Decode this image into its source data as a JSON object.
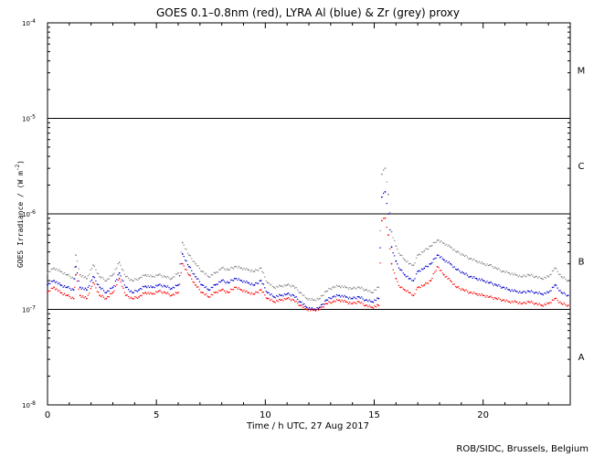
{
  "chart_data": {
    "type": "scatter",
    "title": "GOES 0.1–0.8nm (red), LYRA Al (blue) & Zr (grey) proxy",
    "xlabel": "Time / h UTC, 27 Aug 2017",
    "ylabel": "GOES Irradiance / (W m",
    "ylabel_exp": "-2",
    "ylabel_close": ")",
    "credit": "ROB/SIDC, Brussels, Belgium",
    "x_range": [
      0,
      24
    ],
    "x_ticks": [
      {
        "value": 0,
        "label": "0"
      },
      {
        "value": 5,
        "label": "5"
      },
      {
        "value": 10,
        "label": "10"
      },
      {
        "value": 15,
        "label": "15"
      },
      {
        "value": 20,
        "label": "20"
      }
    ],
    "y_scale": "log",
    "y_range": [
      1e-08,
      0.0001
    ],
    "y_ticks": [
      {
        "value": 0.0001,
        "base": "10",
        "exp": "-4"
      },
      {
        "value": 1e-05,
        "base": "10",
        "exp": "-5"
      },
      {
        "value": 1e-06,
        "base": "10",
        "exp": "-6"
      },
      {
        "value": 1e-07,
        "base": "10",
        "exp": "-7"
      },
      {
        "value": 1e-08,
        "base": "10",
        "exp": "-8"
      }
    ],
    "class_thresholds": [
      1e-05,
      1e-06,
      1e-07
    ],
    "class_labels": [
      {
        "label": "M",
        "value": 3.2e-05
      },
      {
        "label": "C",
        "value": 3.2e-06
      },
      {
        "label": "B",
        "value": 3.2e-07
      },
      {
        "label": "A",
        "value": 3.2e-08
      }
    ],
    "grid": false,
    "legend": "none",
    "series": [
      {
        "name": "GOES 0.1–0.8nm",
        "color": "#ff0000",
        "points": [
          [
            0.0,
            1.5e-07
          ],
          [
            0.3,
            1.7e-07
          ],
          [
            0.6,
            1.5e-07
          ],
          [
            0.9,
            1.4e-07
          ],
          [
            1.2,
            1.3e-07
          ],
          [
            1.3,
            2.3e-07
          ],
          [
            1.5,
            1.4e-07
          ],
          [
            1.8,
            1.3e-07
          ],
          [
            2.1,
            1.9e-07
          ],
          [
            2.4,
            1.4e-07
          ],
          [
            2.7,
            1.3e-07
          ],
          [
            3.0,
            1.5e-07
          ],
          [
            3.3,
            2.1e-07
          ],
          [
            3.6,
            1.4e-07
          ],
          [
            3.9,
            1.3e-07
          ],
          [
            4.2,
            1.35e-07
          ],
          [
            4.5,
            1.5e-07
          ],
          [
            4.8,
            1.45e-07
          ],
          [
            5.1,
            1.55e-07
          ],
          [
            5.4,
            1.5e-07
          ],
          [
            5.7,
            1.4e-07
          ],
          [
            6.0,
            1.5e-07
          ],
          [
            6.2,
            3e-07
          ],
          [
            6.5,
            2.3e-07
          ],
          [
            6.8,
            1.8e-07
          ],
          [
            7.1,
            1.5e-07
          ],
          [
            7.4,
            1.35e-07
          ],
          [
            7.7,
            1.5e-07
          ],
          [
            8.0,
            1.6e-07
          ],
          [
            8.3,
            1.5e-07
          ],
          [
            8.6,
            1.7e-07
          ],
          [
            8.9,
            1.6e-07
          ],
          [
            9.2,
            1.5e-07
          ],
          [
            9.5,
            1.45e-07
          ],
          [
            9.8,
            1.6e-07
          ],
          [
            10.1,
            1.3e-07
          ],
          [
            10.4,
            1.2e-07
          ],
          [
            10.7,
            1.25e-07
          ],
          [
            11.0,
            1.3e-07
          ],
          [
            11.3,
            1.25e-07
          ],
          [
            11.6,
            1.1e-07
          ],
          [
            11.9,
            1e-07
          ],
          [
            12.2,
            9.8e-08
          ],
          [
            12.5,
            1e-07
          ],
          [
            12.8,
            1.15e-07
          ],
          [
            13.1,
            1.2e-07
          ],
          [
            13.4,
            1.25e-07
          ],
          [
            13.7,
            1.2e-07
          ],
          [
            14.0,
            1.15e-07
          ],
          [
            14.3,
            1.2e-07
          ],
          [
            14.6,
            1.1e-07
          ],
          [
            14.9,
            1.05e-07
          ],
          [
            15.2,
            1.1e-07
          ],
          [
            15.35,
            8.5e-07
          ],
          [
            15.5,
            9e-07
          ],
          [
            15.65,
            6e-07
          ],
          [
            15.8,
            3e-07
          ],
          [
            16.0,
            2.1e-07
          ],
          [
            16.2,
            1.7e-07
          ],
          [
            16.4,
            1.6e-07
          ],
          [
            16.6,
            1.5e-07
          ],
          [
            16.8,
            1.4e-07
          ],
          [
            17.0,
            1.7e-07
          ],
          [
            17.3,
            1.8e-07
          ],
          [
            17.6,
            2e-07
          ],
          [
            17.9,
            2.8e-07
          ],
          [
            18.2,
            2.3e-07
          ],
          [
            18.5,
            2e-07
          ],
          [
            18.8,
            1.7e-07
          ],
          [
            19.1,
            1.6e-07
          ],
          [
            19.4,
            1.5e-07
          ],
          [
            19.7,
            1.45e-07
          ],
          [
            20.0,
            1.4e-07
          ],
          [
            20.3,
            1.35e-07
          ],
          [
            20.6,
            1.3e-07
          ],
          [
            20.9,
            1.25e-07
          ],
          [
            21.2,
            1.2e-07
          ],
          [
            21.5,
            1.2e-07
          ],
          [
            21.8,
            1.15e-07
          ],
          [
            22.1,
            1.2e-07
          ],
          [
            22.4,
            1.15e-07
          ],
          [
            22.7,
            1.1e-07
          ],
          [
            23.0,
            1.15e-07
          ],
          [
            23.3,
            1.3e-07
          ],
          [
            23.6,
            1.15e-07
          ],
          [
            23.9,
            1.1e-07
          ]
        ]
      },
      {
        "name": "LYRA Al",
        "color": "#0000cc",
        "points": [
          [
            0.0,
            1.8e-07
          ],
          [
            0.3,
            2e-07
          ],
          [
            0.6,
            1.8e-07
          ],
          [
            0.9,
            1.7e-07
          ],
          [
            1.2,
            1.6e-07
          ],
          [
            1.3,
            2.8e-07
          ],
          [
            1.5,
            1.7e-07
          ],
          [
            1.8,
            1.6e-07
          ],
          [
            2.1,
            2.2e-07
          ],
          [
            2.4,
            1.7e-07
          ],
          [
            2.7,
            1.5e-07
          ],
          [
            3.0,
            1.7e-07
          ],
          [
            3.3,
            2.4e-07
          ],
          [
            3.6,
            1.7e-07
          ],
          [
            3.9,
            1.5e-07
          ],
          [
            4.2,
            1.6e-07
          ],
          [
            4.5,
            1.75e-07
          ],
          [
            4.8,
            1.7e-07
          ],
          [
            5.1,
            1.8e-07
          ],
          [
            5.4,
            1.75e-07
          ],
          [
            5.7,
            1.65e-07
          ],
          [
            6.0,
            1.8e-07
          ],
          [
            6.2,
            3.8e-07
          ],
          [
            6.5,
            2.8e-07
          ],
          [
            6.8,
            2.2e-07
          ],
          [
            7.1,
            1.8e-07
          ],
          [
            7.4,
            1.6e-07
          ],
          [
            7.7,
            1.8e-07
          ],
          [
            8.0,
            2e-07
          ],
          [
            8.3,
            1.9e-07
          ],
          [
            8.6,
            2.1e-07
          ],
          [
            8.9,
            2e-07
          ],
          [
            9.2,
            1.9e-07
          ],
          [
            9.5,
            1.8e-07
          ],
          [
            9.8,
            2e-07
          ],
          [
            10.1,
            1.5e-07
          ],
          [
            10.4,
            1.35e-07
          ],
          [
            10.7,
            1.4e-07
          ],
          [
            11.0,
            1.45e-07
          ],
          [
            11.3,
            1.4e-07
          ],
          [
            11.6,
            1.2e-07
          ],
          [
            11.9,
            1.05e-07
          ],
          [
            12.2,
            1e-07
          ],
          [
            12.5,
            1.05e-07
          ],
          [
            12.8,
            1.25e-07
          ],
          [
            13.1,
            1.35e-07
          ],
          [
            13.4,
            1.4e-07
          ],
          [
            13.7,
            1.35e-07
          ],
          [
            14.0,
            1.3e-07
          ],
          [
            14.3,
            1.35e-07
          ],
          [
            14.6,
            1.25e-07
          ],
          [
            14.9,
            1.2e-07
          ],
          [
            15.2,
            1.3e-07
          ],
          [
            15.35,
            1.5e-06
          ],
          [
            15.5,
            1.7e-06
          ],
          [
            15.65,
            1e-06
          ],
          [
            15.8,
            4.5e-07
          ],
          [
            16.0,
            3.2e-07
          ],
          [
            16.2,
            2.6e-07
          ],
          [
            16.4,
            2.3e-07
          ],
          [
            16.6,
            2.1e-07
          ],
          [
            16.8,
            2e-07
          ],
          [
            17.0,
            2.5e-07
          ],
          [
            17.3,
            2.7e-07
          ],
          [
            17.6,
            3e-07
          ],
          [
            17.9,
            3.7e-07
          ],
          [
            18.2,
            3.3e-07
          ],
          [
            18.5,
            3e-07
          ],
          [
            18.8,
            2.6e-07
          ],
          [
            19.1,
            2.4e-07
          ],
          [
            19.4,
            2.2e-07
          ],
          [
            19.7,
            2.1e-07
          ],
          [
            20.0,
            2e-07
          ],
          [
            20.3,
            1.9e-07
          ],
          [
            20.6,
            1.8e-07
          ],
          [
            20.9,
            1.7e-07
          ],
          [
            21.2,
            1.6e-07
          ],
          [
            21.5,
            1.55e-07
          ],
          [
            21.8,
            1.5e-07
          ],
          [
            22.1,
            1.55e-07
          ],
          [
            22.4,
            1.5e-07
          ],
          [
            22.7,
            1.45e-07
          ],
          [
            23.0,
            1.5e-07
          ],
          [
            23.3,
            1.8e-07
          ],
          [
            23.6,
            1.5e-07
          ],
          [
            23.9,
            1.4e-07
          ]
        ]
      },
      {
        "name": "Zr",
        "color": "#888888",
        "points": [
          [
            0.0,
            2.4e-07
          ],
          [
            0.3,
            2.7e-07
          ],
          [
            0.6,
            2.5e-07
          ],
          [
            0.9,
            2.3e-07
          ],
          [
            1.2,
            2.1e-07
          ],
          [
            1.3,
            3.7e-07
          ],
          [
            1.5,
            2.3e-07
          ],
          [
            1.8,
            2.1e-07
          ],
          [
            2.1,
            2.9e-07
          ],
          [
            2.4,
            2.2e-07
          ],
          [
            2.7,
            2e-07
          ],
          [
            3.0,
            2.3e-07
          ],
          [
            3.3,
            3.1e-07
          ],
          [
            3.6,
            2.2e-07
          ],
          [
            3.9,
            2e-07
          ],
          [
            4.2,
            2.1e-07
          ],
          [
            4.5,
            2.3e-07
          ],
          [
            4.8,
            2.2e-07
          ],
          [
            5.1,
            2.3e-07
          ],
          [
            5.4,
            2.2e-07
          ],
          [
            5.7,
            2.1e-07
          ],
          [
            6.0,
            2.4e-07
          ],
          [
            6.2,
            5e-07
          ],
          [
            6.5,
            3.7e-07
          ],
          [
            6.8,
            3e-07
          ],
          [
            7.1,
            2.5e-07
          ],
          [
            7.4,
            2.2e-07
          ],
          [
            7.7,
            2.4e-07
          ],
          [
            8.0,
            2.7e-07
          ],
          [
            8.3,
            2.6e-07
          ],
          [
            8.6,
            2.8e-07
          ],
          [
            8.9,
            2.7e-07
          ],
          [
            9.2,
            2.6e-07
          ],
          [
            9.5,
            2.5e-07
          ],
          [
            9.8,
            2.7e-07
          ],
          [
            10.1,
            1.9e-07
          ],
          [
            10.4,
            1.7e-07
          ],
          [
            10.7,
            1.75e-07
          ],
          [
            11.0,
            1.8e-07
          ],
          [
            11.3,
            1.75e-07
          ],
          [
            11.6,
            1.5e-07
          ],
          [
            11.9,
            1.3e-07
          ],
          [
            12.2,
            1.25e-07
          ],
          [
            12.5,
            1.3e-07
          ],
          [
            12.8,
            1.55e-07
          ],
          [
            13.1,
            1.7e-07
          ],
          [
            13.4,
            1.75e-07
          ],
          [
            13.7,
            1.7e-07
          ],
          [
            14.0,
            1.65e-07
          ],
          [
            14.3,
            1.7e-07
          ],
          [
            14.6,
            1.6e-07
          ],
          [
            14.9,
            1.5e-07
          ],
          [
            15.2,
            1.7e-07
          ],
          [
            15.35,
            2.6e-06
          ],
          [
            15.5,
            3e-06
          ],
          [
            15.65,
            1.6e-06
          ],
          [
            15.8,
            6.5e-07
          ],
          [
            16.0,
            4.6e-07
          ],
          [
            16.2,
            3.7e-07
          ],
          [
            16.4,
            3.3e-07
          ],
          [
            16.6,
            3e-07
          ],
          [
            16.8,
            2.9e-07
          ],
          [
            17.0,
            3.7e-07
          ],
          [
            17.3,
            4.1e-07
          ],
          [
            17.6,
            4.6e-07
          ],
          [
            17.9,
            5.3e-07
          ],
          [
            18.2,
            4.9e-07
          ],
          [
            18.5,
            4.5e-07
          ],
          [
            18.8,
            4e-07
          ],
          [
            19.1,
            3.7e-07
          ],
          [
            19.4,
            3.4e-07
          ],
          [
            19.7,
            3.2e-07
          ],
          [
            20.0,
            3e-07
          ],
          [
            20.3,
            2.9e-07
          ],
          [
            20.6,
            2.7e-07
          ],
          [
            20.9,
            2.5e-07
          ],
          [
            21.2,
            2.4e-07
          ],
          [
            21.5,
            2.3e-07
          ],
          [
            21.8,
            2.2e-07
          ],
          [
            22.1,
            2.3e-07
          ],
          [
            22.4,
            2.2e-07
          ],
          [
            22.7,
            2.1e-07
          ],
          [
            23.0,
            2.2e-07
          ],
          [
            23.3,
            2.7e-07
          ],
          [
            23.6,
            2.2e-07
          ],
          [
            23.9,
            2e-07
          ]
        ]
      }
    ]
  }
}
